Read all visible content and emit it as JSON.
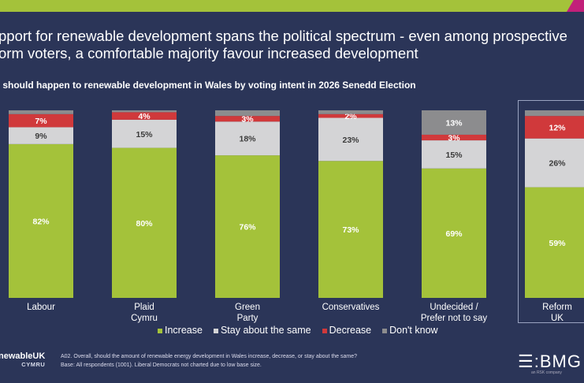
{
  "headline": "pport for renewable development spans the political spectrum - even among prospective\norm voters, a comfortable majority favour increased development",
  "headline_lines": [
    "pport for renewable development spans the political spectrum - even among prospective",
    "orm voters, a comfortable majority favour increased development"
  ],
  "chart_data": {
    "type": "bar",
    "stacked": true,
    "percent": true,
    "title": "t should happen to renewable development in Wales by voting intent in 2026 Senedd Election",
    "categories": [
      "Labour",
      "Plaid\nCymru",
      "Green\nParty",
      "Conservatives",
      "Undecided /\nPrefer not to say",
      "Reform\nUK"
    ],
    "series": [
      {
        "name": "Increase",
        "color": "#a4c23a",
        "values": [
          82,
          80,
          76,
          73,
          69,
          59
        ]
      },
      {
        "name": "Stay about the same",
        "color": "#d4d4d6",
        "values": [
          9,
          15,
          18,
          23,
          15,
          26
        ]
      },
      {
        "name": "Decrease",
        "color": "#d0393b",
        "values": [
          7,
          4,
          3,
          2,
          3,
          12
        ]
      },
      {
        "name": "Don't know",
        "color": "#8c8c8e",
        "values": [
          2,
          1,
          3,
          2,
          13,
          3
        ]
      }
    ],
    "data_labels_shown": {
      "Increase": true,
      "Stay about the same": true,
      "Decrease": true,
      "Don't know": [
        false,
        false,
        false,
        false,
        true,
        false
      ]
    },
    "ylim": [
      0,
      100
    ],
    "legend": "bottom",
    "grid": false,
    "highlighted_category": "Reform\nUK"
  },
  "footer": {
    "logo_text": "newableUK",
    "logo_sub": "CYMRU",
    "note_line1": "A02. Overall, should the amount of renewable energy development in Wales increase, decrease, or stay about the same?",
    "note_line2": "Base: All respondents (1001). Liberal Democrats not charted due to low base size.",
    "brand": "BMG",
    "brand_sub": "an RSK company"
  },
  "colors": {
    "background": "#2b3558",
    "accent_green": "#a4c23a",
    "accent_pink": "#c2207a"
  }
}
